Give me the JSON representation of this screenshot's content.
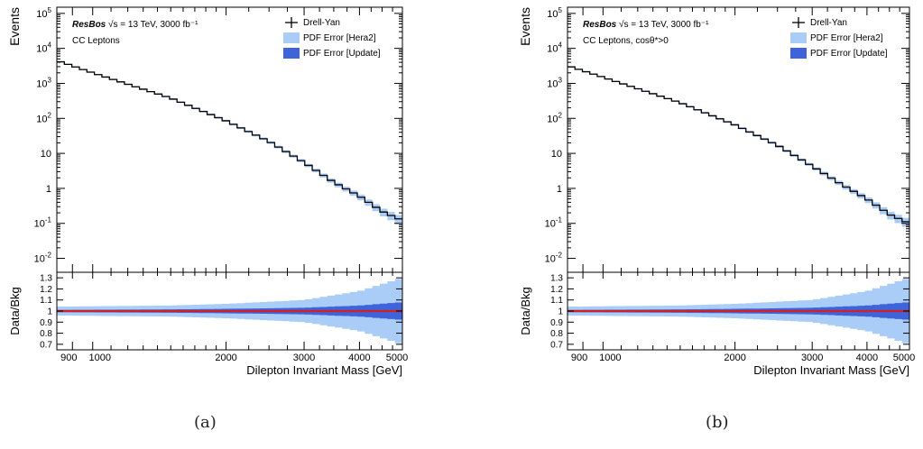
{
  "chart_data": [
    {
      "id": "a",
      "type": "line",
      "caption": "(a)",
      "header_italic": "ResBos",
      "header_rest": "√s = 13 TeV, 3000 fb⁻¹",
      "selection_label": "CC Leptons",
      "ylabel": "Events",
      "ratio_ylabel": "Data/Bkg",
      "xlabel": "Dilepton Invariant Mass [GeV]",
      "xscale": "log",
      "xlim": [
        830,
        5000
      ],
      "ylim": [
        0.004,
        150000
      ],
      "ratio_ylim": [
        0.65,
        1.35
      ],
      "x_tick_labels": [
        {
          "value": 900,
          "label": "900"
        },
        {
          "value": 1000,
          "label": "1000"
        },
        {
          "value": 2000,
          "label": "2000"
        },
        {
          "value": 3000,
          "label": "3000"
        },
        {
          "value": 4000,
          "label": "4000"
        },
        {
          "value": 5000,
          "label": "5000"
        }
      ],
      "y_tick_labels": [
        {
          "value": 0.01,
          "base": "10",
          "exp": "-2"
        },
        {
          "value": 0.1,
          "base": "10",
          "exp": "-1"
        },
        {
          "value": 1,
          "base": "1",
          "exp": ""
        },
        {
          "value": 10,
          "base": "10",
          "exp": ""
        },
        {
          "value": 100,
          "base": "10",
          "exp": "2"
        },
        {
          "value": 1000,
          "base": "10",
          "exp": "3"
        },
        {
          "value": 10000,
          "base": "10",
          "exp": "4"
        },
        {
          "value": 100000,
          "base": "10",
          "exp": "5"
        }
      ],
      "ratio_tick_labels": [
        "0.7",
        "0.8",
        "0.9",
        "1",
        "1.1",
        "1.2",
        "1.3"
      ],
      "legend_position": "top-right",
      "legend": [
        {
          "label": "Drell-Yan",
          "kind": "cross"
        },
        {
          "label": "PDF Error [Hera2]",
          "kind": "box",
          "color": "#a9cdf7"
        },
        {
          "label": "PDF Error [Update]",
          "kind": "box",
          "color": "#3f63d9"
        }
      ],
      "series": [
        {
          "name": "Drell-Yan",
          "x": [
            830,
            1000,
            1500,
            2000,
            2500,
            3000,
            3500,
            4000,
            4500,
            5000
          ],
          "y": [
            4500,
            2000,
            380,
            85,
            22,
            5.5,
            1.5,
            0.6,
            0.22,
            0.12
          ]
        }
      ],
      "ratio_line": 1.0,
      "ratio_band_hera2": {
        "x": [
          830,
          1500,
          2000,
          3000,
          4000,
          5000
        ],
        "half_width": [
          0.04,
          0.05,
          0.065,
          0.1,
          0.18,
          0.3
        ]
      },
      "ratio_band_update": {
        "x": [
          830,
          1500,
          2000,
          3000,
          4000,
          5000
        ],
        "half_width": [
          0.01,
          0.015,
          0.02,
          0.03,
          0.05,
          0.08
        ]
      },
      "colors": {
        "data_line": "#000000",
        "ratio_line": "#d42020",
        "hera2": "#a9cdf7",
        "update": "#3f63d9"
      }
    },
    {
      "id": "b",
      "type": "line",
      "caption": "(b)",
      "header_italic": "ResBos",
      "header_rest": "√s = 13 TeV, 3000 fb⁻¹",
      "selection_label": "CC Leptons, cosθ*>0",
      "ylabel": "Events",
      "ratio_ylabel": "Data/Bkg",
      "xlabel": "Dilepton Invariant Mass [GeV]",
      "xscale": "log",
      "xlim": [
        830,
        5000
      ],
      "ylim": [
        0.004,
        150000
      ],
      "ratio_ylim": [
        0.65,
        1.35
      ],
      "x_tick_labels": [
        {
          "value": 900,
          "label": "900"
        },
        {
          "value": 1000,
          "label": "1000"
        },
        {
          "value": 2000,
          "label": "2000"
        },
        {
          "value": 3000,
          "label": "3000"
        },
        {
          "value": 4000,
          "label": "4000"
        },
        {
          "value": 5000,
          "label": "5000"
        }
      ],
      "y_tick_labels": [
        {
          "value": 0.01,
          "base": "10",
          "exp": "-2"
        },
        {
          "value": 0.1,
          "base": "10",
          "exp": "-1"
        },
        {
          "value": 1,
          "base": "1",
          "exp": ""
        },
        {
          "value": 10,
          "base": "10",
          "exp": ""
        },
        {
          "value": 100,
          "base": "10",
          "exp": "2"
        },
        {
          "value": 1000,
          "base": "10",
          "exp": "3"
        },
        {
          "value": 10000,
          "base": "10",
          "exp": "4"
        },
        {
          "value": 100000,
          "base": "10",
          "exp": "5"
        }
      ],
      "ratio_tick_labels": [
        "0.7",
        "0.8",
        "0.9",
        "1",
        "1.1",
        "1.2",
        "1.3"
      ],
      "legend_position": "top-right",
      "legend": [
        {
          "label": "Drell-Yan",
          "kind": "cross"
        },
        {
          "label": "PDF Error [Hera2]",
          "kind": "box",
          "color": "#a9cdf7"
        },
        {
          "label": "PDF Error [Update]",
          "kind": "box",
          "color": "#3f63d9"
        }
      ],
      "series": [
        {
          "name": "Drell-Yan",
          "x": [
            830,
            1000,
            1500,
            2000,
            2500,
            3000,
            3500,
            4000,
            4500,
            5000
          ],
          "y": [
            3200,
            1500,
            280,
            65,
            17,
            4.3,
            1.3,
            0.5,
            0.18,
            0.1
          ]
        }
      ],
      "ratio_line": 1.0,
      "ratio_band_hera2": {
        "x": [
          830,
          1500,
          2000,
          3000,
          4000,
          5000
        ],
        "half_width": [
          0.04,
          0.05,
          0.065,
          0.1,
          0.18,
          0.3
        ]
      },
      "ratio_band_update": {
        "x": [
          830,
          1500,
          2000,
          3000,
          4000,
          5000
        ],
        "half_width": [
          0.01,
          0.015,
          0.02,
          0.03,
          0.05,
          0.08
        ]
      },
      "colors": {
        "data_line": "#000000",
        "ratio_line": "#d42020",
        "hera2": "#a9cdf7",
        "update": "#3f63d9"
      }
    }
  ]
}
